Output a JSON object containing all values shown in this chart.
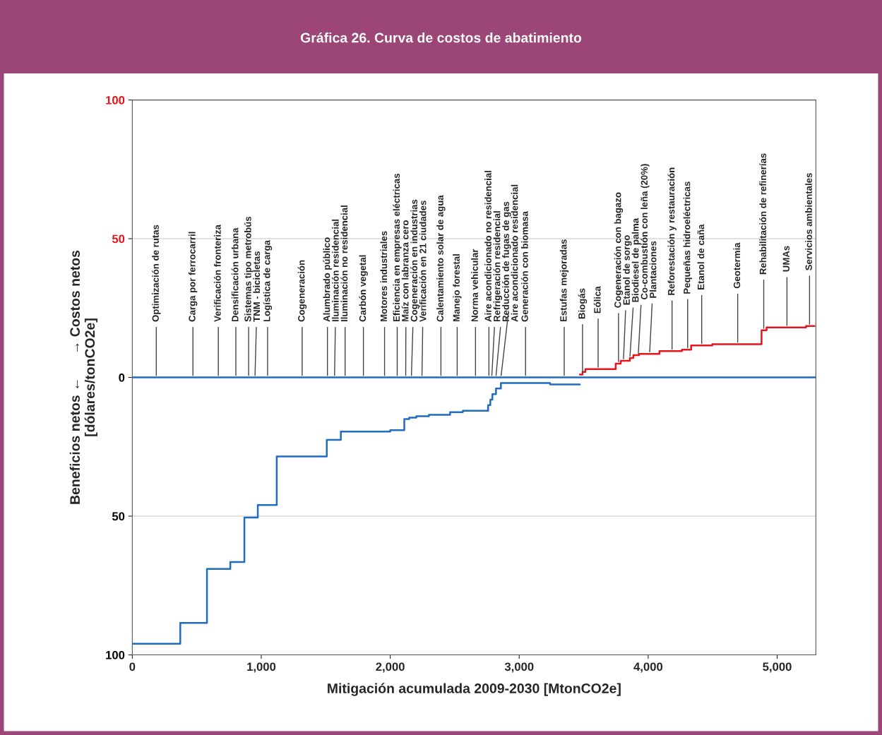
{
  "chart_data": {
    "type": "step",
    "title": "Gráfica 26. Curva de costos de abatimiento",
    "xlabel": "Mitigación acumulada 2009-2030 [MtonCO2e]",
    "ylabel": "Beneficios netos ←      → Costos netos\n[dólares/tonCO2e]",
    "xlim": [
      0,
      5300
    ],
    "xticks": [
      {
        "value": 0,
        "label": "0"
      },
      {
        "value": 1000,
        "label": "1,000"
      },
      {
        "value": 2000,
        "label": "2,000"
      },
      {
        "value": 3000,
        "label": "3,000"
      },
      {
        "value": 4000,
        "label": "4,000"
      },
      {
        "value": 5000,
        "label": "5,000"
      }
    ],
    "ylim": [
      -100,
      100
    ],
    "yticks": [
      {
        "value": -100,
        "label": "100"
      },
      {
        "value": -50,
        "label": "50"
      },
      0,
      50,
      100
    ],
    "grid": "y",
    "ref_lines": [
      {
        "axis": "y",
        "value": 0,
        "color": "#1f6cc0"
      }
    ],
    "series": [
      {
        "color": "#1f6cc0",
        "x": [
          0,
          372,
          579,
          760,
          869,
          913,
          973,
          1120,
          1508,
          1617,
          1656,
          1912,
          2000,
          2109,
          2147,
          2202,
          2300,
          2464,
          2563,
          2759,
          2776,
          2792,
          2820,
          2858,
          3240,
          3470
        ],
        "values": [
          -96,
          -88.5,
          -69,
          -66.5,
          -50.5,
          -50.5,
          -46,
          -28.5,
          -22.5,
          -19.5,
          -19.5,
          -19.5,
          -19,
          -15,
          -14.5,
          -14,
          -13.5,
          -12.5,
          -12,
          -10,
          -8,
          -6,
          -4,
          -2,
          -2.5,
          -2.5
        ]
      },
      {
        "color": "#e8141b",
        "x": [
          3470,
          3491,
          3513,
          3748,
          3787,
          3858,
          3885,
          3929,
          4087,
          4262,
          4333,
          4497,
          4879,
          4918,
          5224,
          5289
        ],
        "values": [
          1,
          2,
          3,
          5,
          6,
          7,
          8,
          8.5,
          9.5,
          10,
          11.5,
          12,
          17,
          18,
          18.5,
          18.5
        ]
      }
    ],
    "annotations": [
      {
        "text": "Optimización de rutas",
        "x": 186,
        "y": 0
      },
      {
        "text": "Carga por ferrocarril",
        "x": 470,
        "y": 0
      },
      {
        "text": "Verificación fronteriza",
        "x": 667,
        "y": 0
      },
      {
        "text": "Densificación urbana",
        "x": 803,
        "y": 0
      },
      {
        "text": "Sistemas tipo metrobús",
        "x": 902,
        "y": 0
      },
      {
        "text": "TNM - bicicletas",
        "x": 951,
        "y": 0
      },
      {
        "text": "Logística de carga",
        "x": 1049,
        "y": 0
      },
      {
        "text": "Cogeneración",
        "x": 1317,
        "y": 0
      },
      {
        "text": "Alumbrado público",
        "x": 1513,
        "y": 0
      },
      {
        "text": "Iluminación residencial",
        "x": 1568,
        "y": 0
      },
      {
        "text": "Iluminación no residencial",
        "x": 1650,
        "y": 0
      },
      {
        "text": "Carbón vegetal",
        "x": 1792,
        "y": 0
      },
      {
        "text": "Motores industriales",
        "x": 1956,
        "y": 0
      },
      {
        "text": "Eficiencia en empresas eléctricas",
        "x": 2054,
        "y": 0
      },
      {
        "text": "Maíz con labranza cero",
        "x": 2120,
        "y": 0
      },
      {
        "text": "Cogeneración en industrias",
        "x": 2164,
        "y": 0
      },
      {
        "text": "Verificación en 21 ciudades",
        "x": 2246,
        "y": 0
      },
      {
        "text": "Calentamiento solar de agua",
        "x": 2393,
        "y": 0
      },
      {
        "text": "Manejo forestal",
        "x": 2519,
        "y": 0
      },
      {
        "text": "Norma vehicular",
        "x": 2661,
        "y": 0
      },
      {
        "text": "Aire acondicionado no residencial",
        "x": 2765,
        "y": 0
      },
      {
        "text": "Refrigeración residencial",
        "x": 2787,
        "y": 0
      },
      {
        "text": "Reducción de fugas de gas",
        "x": 2819,
        "y": 0
      },
      {
        "text": "Aire acondicionado residencial",
        "x": 2858,
        "y": 0
      },
      {
        "text": "Generación con biomasa",
        "x": 3049,
        "y": 0
      },
      {
        "text": "Estufas mejoradas",
        "x": 3349,
        "y": 0
      },
      {
        "text": "Biogás",
        "x": 3491,
        "y": 1
      },
      {
        "text": "Eólica",
        "x": 3612,
        "y": 3
      },
      {
        "text": "Cogeneración con bagazo",
        "x": 3770,
        "y": 5
      },
      {
        "text": "Etanol de sorgo",
        "x": 3808,
        "y": 6
      },
      {
        "text": "Biodiesel de palma",
        "x": 3858,
        "y": 7
      },
      {
        "text": "Co-combustión con leña (20%)",
        "x": 3923,
        "y": 8
      },
      {
        "text": "Plantaciones",
        "x": 4011,
        "y": 8.5
      },
      {
        "text": "Reforestación y restauración",
        "x": 4185,
        "y": 9.5
      },
      {
        "text": "Pequeñas hidroeléctricas",
        "x": 4306,
        "y": 10
      },
      {
        "text": "Etanol de caña",
        "x": 4415,
        "y": 11.5
      },
      {
        "text": "Geotermia",
        "x": 4694,
        "y": 12
      },
      {
        "text": "Rehabilitación de refinerías",
        "x": 4896,
        "y": 17
      },
      {
        "text": "UMAs",
        "x": 5076,
        "y": 18
      },
      {
        "text": "Servicios ambientales",
        "x": 5251,
        "y": 18.5
      }
    ]
  }
}
